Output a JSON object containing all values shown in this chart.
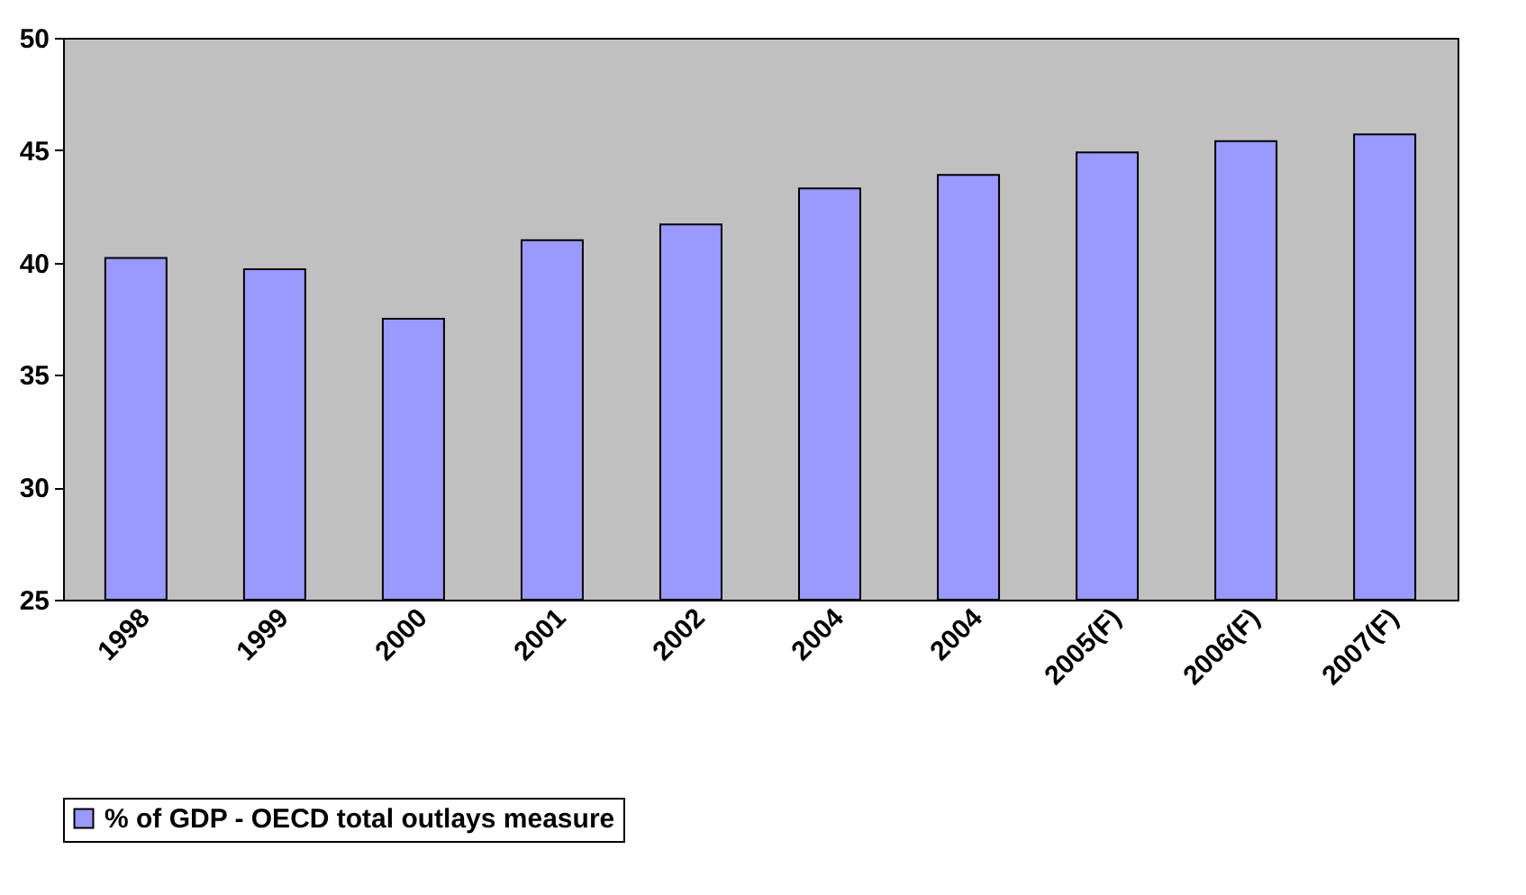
{
  "chart_data": {
    "type": "bar",
    "categories": [
      "1998",
      "1999",
      "2000",
      "2001",
      "2002",
      "2004",
      "2004",
      "2005(F)",
      "2006(F)",
      "2007(F)"
    ],
    "series": [
      {
        "name": "% of GDP - OECD total outlays measure",
        "color": "#9999ff",
        "values": [
          40.2,
          39.7,
          37.5,
          41.0,
          41.7,
          43.3,
          43.9,
          44.9,
          45.4,
          45.7
        ]
      }
    ],
    "ylim": [
      25,
      50
    ],
    "yticks": [
      25,
      30,
      35,
      40,
      45,
      50
    ],
    "grid": false,
    "legend": "bottom"
  }
}
